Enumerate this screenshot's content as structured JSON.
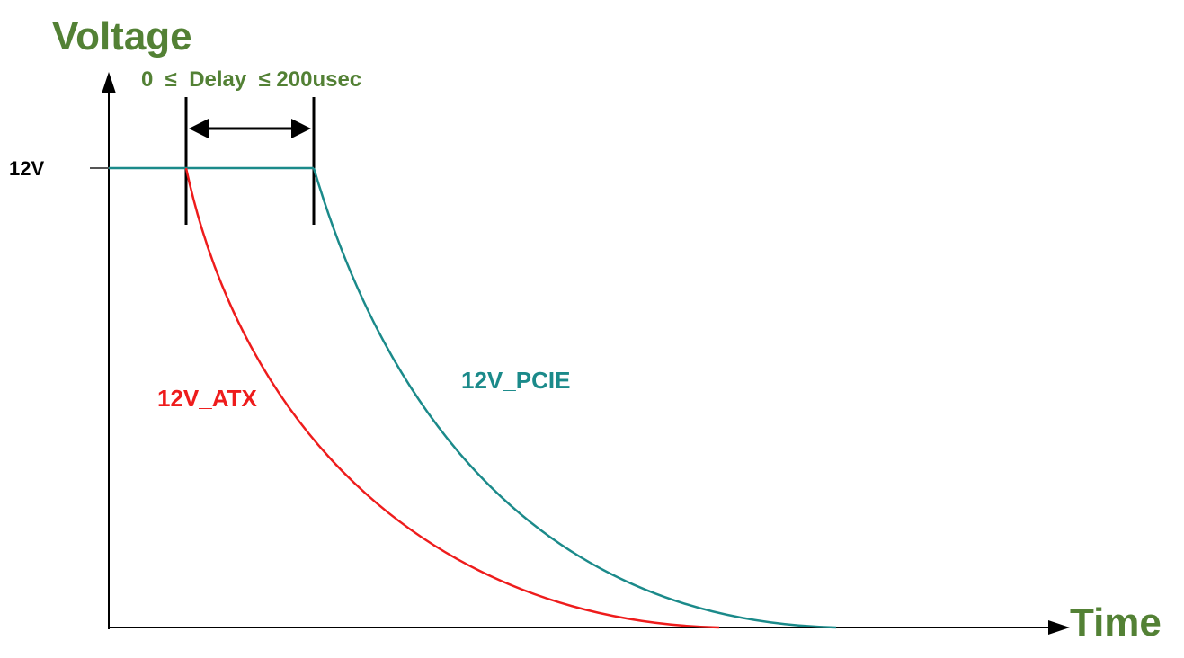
{
  "axes": {
    "y_title": "Voltage",
    "x_title": "Time",
    "y_tick_label": "12V"
  },
  "delay_annotation": {
    "text": "0  ≤  Delay  ≤ 200usec"
  },
  "series": [
    {
      "name": "12V_ATX",
      "color": "#ee1c1c"
    },
    {
      "name": "12V_PCIE",
      "color": "#1b8a8a"
    }
  ],
  "colors": {
    "axis_title": "#538135",
    "axis_line": "#000000",
    "tick_text": "#000000"
  }
}
